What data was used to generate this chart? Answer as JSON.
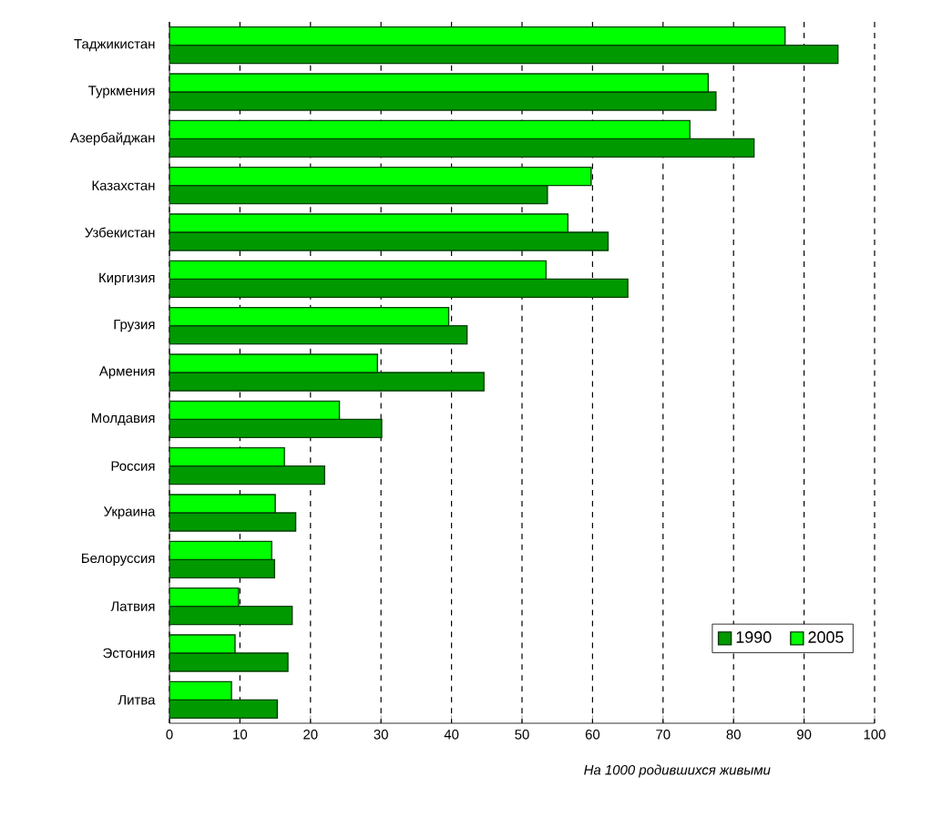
{
  "chart_data": {
    "type": "bar",
    "orientation": "horizontal",
    "xlabel": "*На 1000 родившихся живыми*",
    "categories": [
      "Таджикистан",
      "Туркмения",
      "Азербайджан",
      "Казахстан",
      "Узбекистан",
      "Киргизия",
      "Грузия",
      "Армения",
      "Молдавия",
      "Россия",
      "Украина",
      "Белоруссия",
      "Латвия",
      "Эстония",
      "Литва"
    ],
    "series": [
      {
        "name": "1990",
        "color": "#009900",
        "values": [
          94.8,
          77.5,
          82.9,
          53.6,
          62.2,
          65.0,
          42.2,
          44.6,
          30.1,
          22.0,
          17.9,
          14.9,
          17.4,
          16.8,
          15.3
        ]
      },
      {
        "name": "2005",
        "color": "#00ff00",
        "values": [
          87.3,
          76.4,
          73.8,
          59.8,
          56.5,
          53.4,
          39.6,
          29.5,
          24.1,
          16.3,
          15.0,
          14.5,
          9.8,
          9.3,
          8.8
        ]
      }
    ],
    "xlim": [
      0,
      100
    ],
    "xticks": [
      0,
      10,
      20,
      30,
      40,
      50,
      60,
      70,
      80,
      90,
      100
    ],
    "grid": "x",
    "legend": "bottom right"
  }
}
